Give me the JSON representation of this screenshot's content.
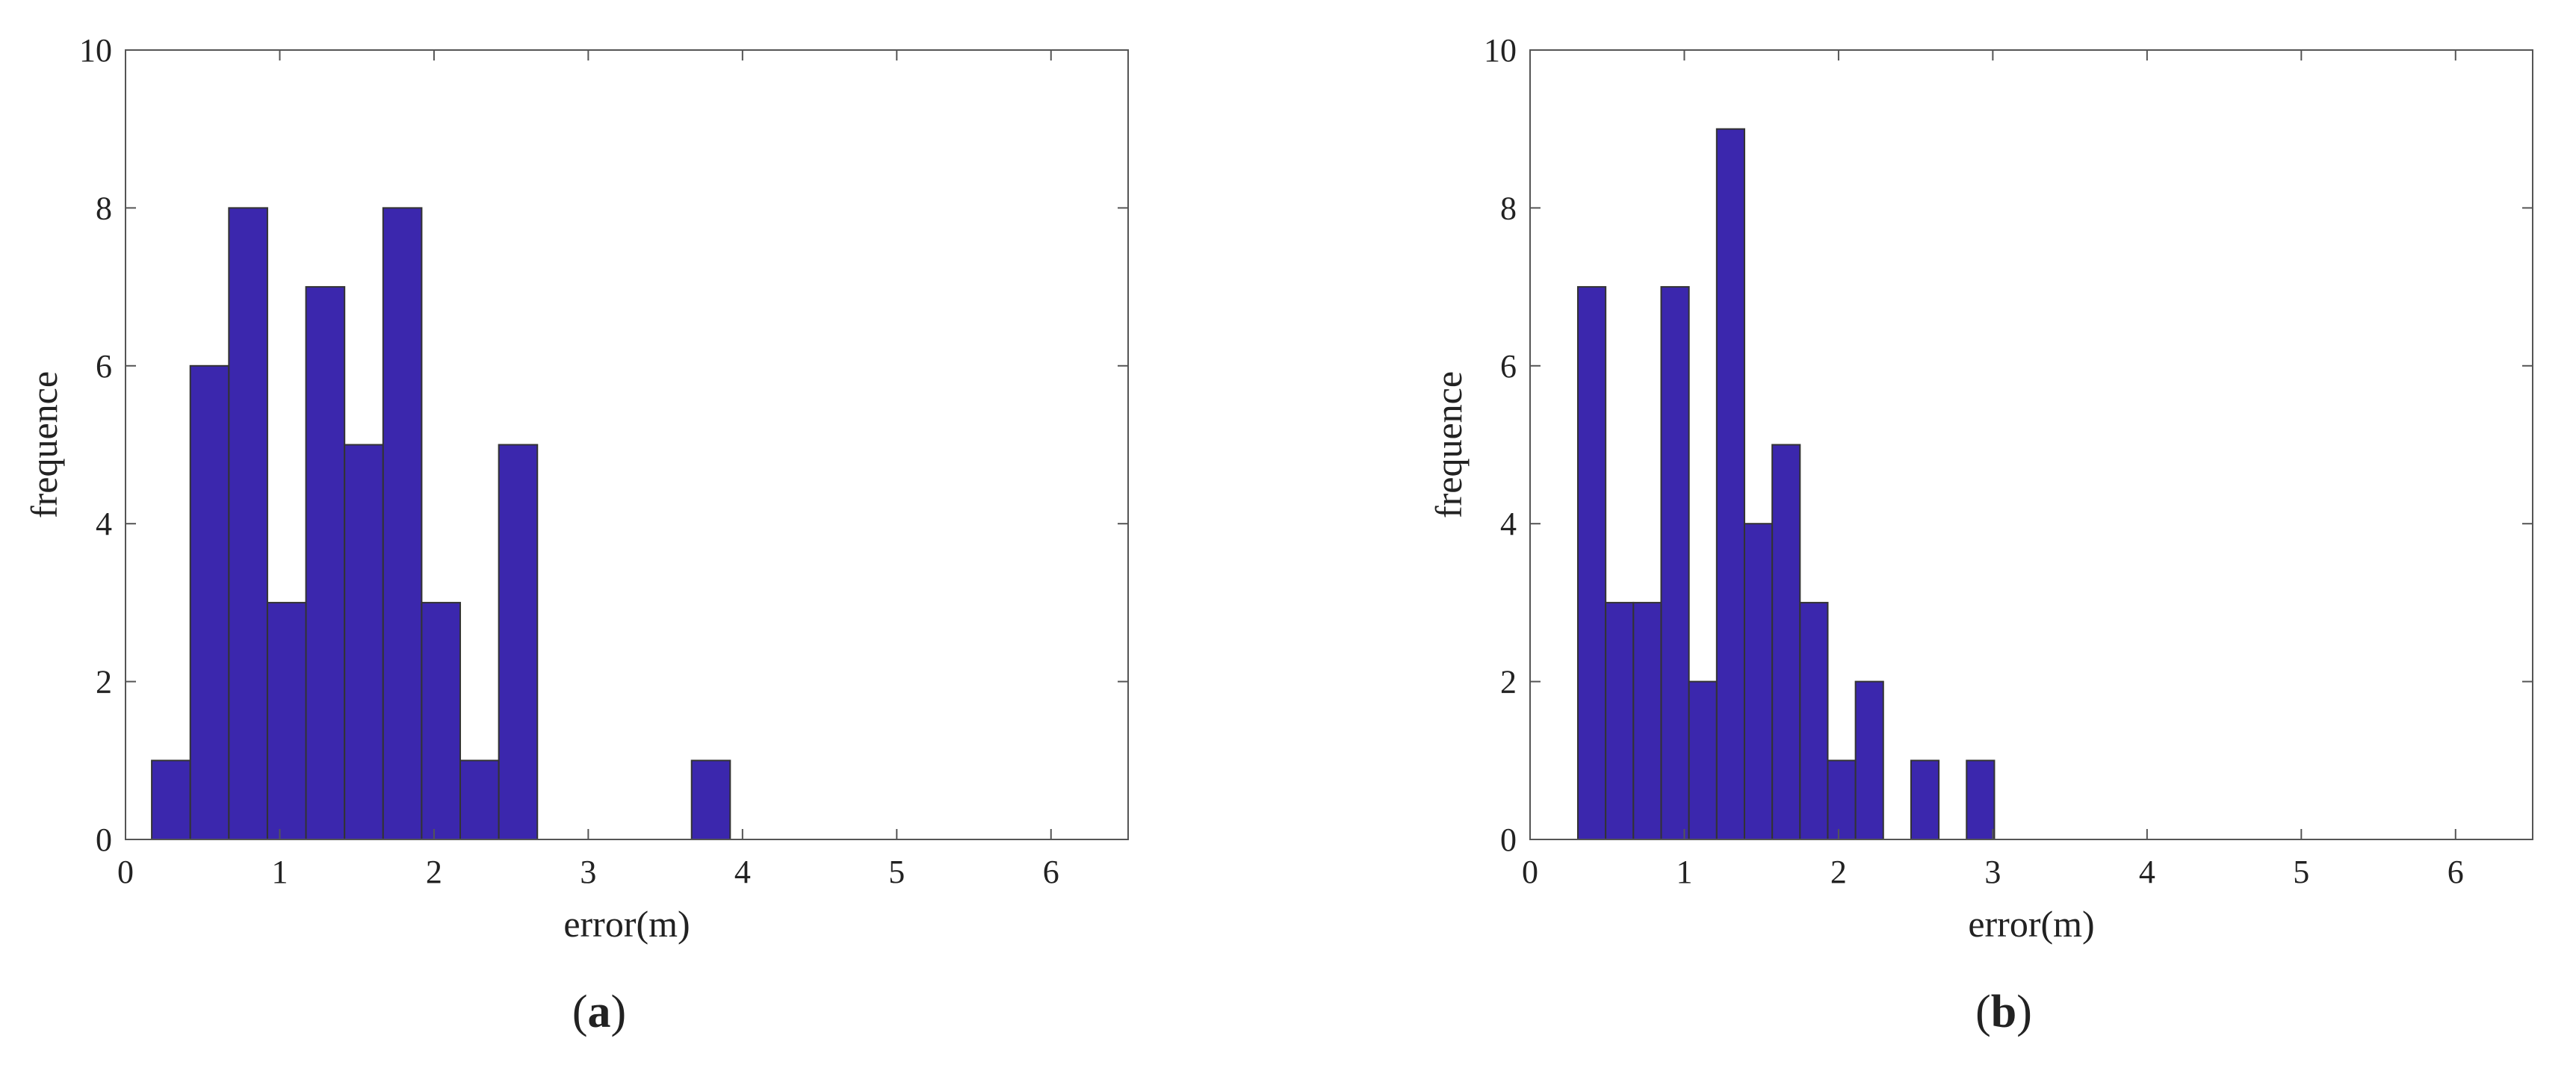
{
  "chart_data": [
    {
      "type": "bar",
      "panel_label": "a",
      "xlabel": "error(m)",
      "ylabel": "frequence",
      "xlim": [
        0,
        6.5
      ],
      "ylim": [
        0,
        10
      ],
      "xticks": [
        "0",
        "1",
        "2",
        "3",
        "4",
        "5",
        "6"
      ],
      "yticks": [
        "0",
        "2",
        "4",
        "6",
        "8",
        "10"
      ],
      "bin_edges": [
        0.17,
        0.42,
        0.67,
        0.92,
        1.17,
        1.42,
        1.67,
        1.92,
        2.17,
        2.42,
        2.67,
        2.92,
        3.17,
        3.42,
        3.67,
        3.92
      ],
      "values": [
        1,
        6,
        8,
        3,
        7,
        5,
        8,
        3,
        1,
        5,
        0,
        0,
        0,
        0,
        1
      ],
      "bar_color": "#3b27ad",
      "grid": false
    },
    {
      "type": "bar",
      "panel_label": "b",
      "xlabel": "error(m)",
      "ylabel": "frequence",
      "xlim": [
        0,
        6.5
      ],
      "ylim": [
        0,
        10
      ],
      "xticks": [
        "0",
        "1",
        "2",
        "3",
        "4",
        "5",
        "6"
      ],
      "yticks": [
        "0",
        "2",
        "4",
        "6",
        "8",
        "10"
      ],
      "bin_edges": [
        0.31,
        0.49,
        0.67,
        0.85,
        1.03,
        1.21,
        1.39,
        1.57,
        1.75,
        1.93,
        2.11,
        2.29,
        2.47,
        2.65,
        2.83,
        3.01
      ],
      "values": [
        7,
        3,
        3,
        7,
        2,
        9,
        4,
        5,
        3,
        1,
        2,
        0,
        1,
        0,
        1
      ],
      "bar_color": "#3b27ad",
      "grid": false
    }
  ]
}
